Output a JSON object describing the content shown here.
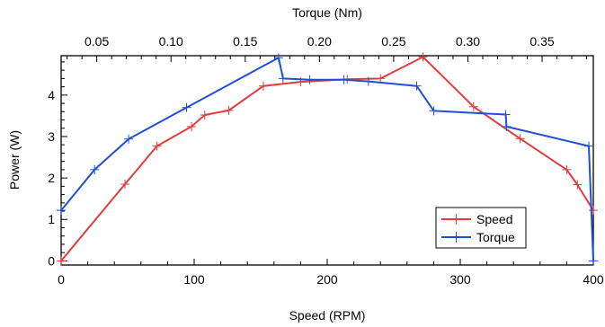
{
  "chart_data": {
    "type": "line",
    "xlabel": "Speed (RPM)",
    "x2label": "Torque (Nm)",
    "ylabel": "Power (W)",
    "xlim": [
      0,
      400
    ],
    "x2lim": [
      0.026,
      0.3845
    ],
    "ylim": [
      -0.1,
      4.95
    ],
    "xticks": [
      0,
      100,
      200,
      300,
      400
    ],
    "x2ticks": [
      0.05,
      0.1,
      0.15,
      0.2,
      0.25,
      0.3,
      0.35
    ],
    "x2tick_labels": [
      "0.05",
      "0.10",
      "0.15",
      "0.20",
      "0.25",
      "0.30",
      "0.35"
    ],
    "yticks": [
      0,
      1,
      2,
      3,
      4
    ],
    "grid": false,
    "legend": "bottom-right",
    "series": [
      {
        "name": "Speed",
        "axis": "bottom",
        "color": "#e03c3c",
        "x": [
          0,
          48,
          72,
          98,
          108,
          126,
          152,
          180,
          215,
          240,
          272,
          310,
          345,
          380,
          388,
          400
        ],
        "y": [
          0.0,
          1.85,
          2.77,
          3.24,
          3.52,
          3.63,
          4.22,
          4.32,
          4.38,
          4.4,
          4.92,
          3.72,
          2.95,
          2.2,
          1.84,
          1.22
        ]
      },
      {
        "name": "Torque",
        "axis": "top",
        "color": "#1f4fd6",
        "x": [
          0.026,
          0.0485,
          0.0715,
          0.1105,
          0.1725,
          0.1755,
          0.1935,
          0.2165,
          0.233,
          0.2655,
          0.277,
          0.3255,
          0.326,
          0.3815,
          0.3845
        ],
        "y": [
          1.22,
          2.2,
          2.94,
          3.7,
          4.9,
          4.4,
          4.37,
          4.37,
          4.33,
          4.22,
          3.62,
          3.53,
          3.24,
          2.77,
          0.0
        ]
      }
    ]
  }
}
